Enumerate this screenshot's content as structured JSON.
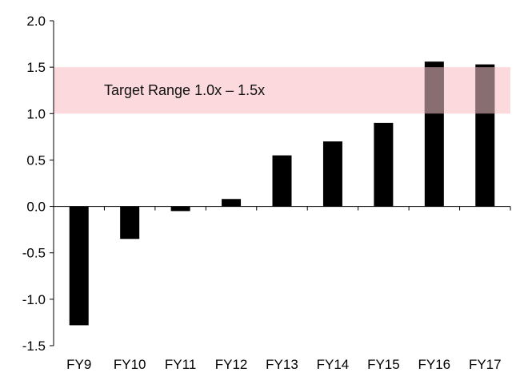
{
  "chart_data": {
    "type": "bar",
    "title": "",
    "xlabel": "",
    "ylabel": "",
    "categories": [
      "FY9",
      "FY10",
      "FY11",
      "FY12",
      "FY13",
      "FY14",
      "FY15",
      "FY16",
      "FY17"
    ],
    "values": [
      -1.28,
      -0.35,
      -0.05,
      0.08,
      0.55,
      0.7,
      0.9,
      1.56,
      1.53
    ],
    "ylim": [
      -1.5,
      2.0
    ],
    "yticks": [
      2.0,
      1.5,
      1.0,
      0.5,
      0.0,
      -0.5,
      -1.0,
      -1.5
    ],
    "ytick_labels": [
      "2.0",
      "1.5",
      "1.0",
      "0.5",
      "0.0",
      "-0.5",
      "-1.0",
      "-1.5"
    ],
    "grid": false,
    "bar_color": "#000000",
    "target_band": {
      "from": 1.0,
      "to": 1.5,
      "label": "Target Range 1.0x – 1.5x",
      "color": "#fbd9dc"
    }
  }
}
